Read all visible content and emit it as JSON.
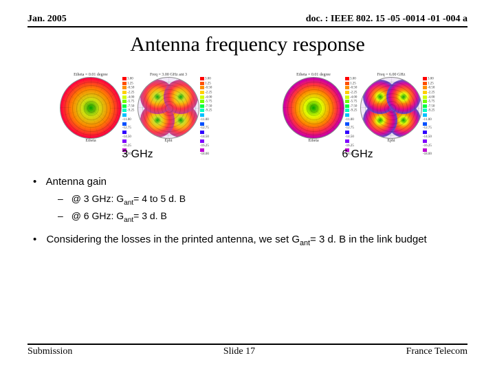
{
  "header": {
    "left": "Jan. 2005",
    "right": "doc. : IEEE 802. 15 -05 -0014 -01 -004 a"
  },
  "title": "Antenna frequency response",
  "polar_plots": {
    "groups": [
      {
        "label": "3 GHz",
        "plots": [
          {
            "pattern": "concentric",
            "gradient": "radial-gradient(circle, #00a000 0%, #d0e010 20%, #ff8000 45%, #ff0040 70%, #c00090 86%, #e8d0f0 95%)",
            "tiny_top": "Etheta = 0.01 degree",
            "tiny_bottom": "Etheta"
          },
          {
            "pattern": "lobes4",
            "gradient": "radial-gradient(circle, #00a000 0%, #c8e020 15%, #ffb000 30%, #ff3040 50%, #c04090 70%, #b060c0 78%, #f0e0f8 92%)",
            "tiny_top": "Freq = 3.00 GHz ant 3",
            "tiny_bottom": "Ephi"
          }
        ]
      },
      {
        "label": "6 GHz",
        "plots": [
          {
            "pattern": "concentric",
            "gradient": "radial-gradient(circle, #00a000 0%, #e0ff00 20%, #ff8000 42%, #ff3040 55%, #d000a0 68%, #6040c0 80%, #d0c0f0 93%)",
            "tiny_top": "Etheta = 0.01 degree",
            "tiny_bottom": "Etheta"
          },
          {
            "pattern": "lobes4",
            "gradient": "radial-gradient(circle, #00a000 0%, #e0ff00 15%, #ff8000 28%, #ff3040 42%, #d000a0 56%, #6040c0 68%, #d0c0f0 82%, #ffffff 95%)",
            "tiny_top": "Freq = 6.00 GHz",
            "tiny_bottom": "Ephi"
          }
        ]
      }
    ],
    "legend_colors": [
      "#ff0000",
      "#ff5000",
      "#ff9000",
      "#ffd000",
      "#d0ff00",
      "#70ff00",
      "#00ff40",
      "#00ffc0",
      "#00c0ff",
      "#0050ff",
      "#3000ff",
      "#8000ff",
      "#c000d0"
    ],
    "legend_values": [
      "3.00",
      "1.25",
      "-0.50",
      "-2.25",
      "-4.00",
      "-5.75",
      "-7.50",
      "-9.25",
      "-11.00",
      "-12.75",
      "-14.50",
      "-16.25",
      "-18.00"
    ],
    "ring_fractions": [
      0.125,
      0.25,
      0.375,
      0.5,
      0.625,
      0.75,
      0.875
    ]
  },
  "bullets": {
    "item1": "Antenna gain",
    "sub1_prefix": "@ 3 GHz: G",
    "sub1_sub": "ant",
    "sub1_suffix": "= 4 to 5 d. B",
    "sub2_prefix": "@ 6 GHz: G",
    "sub2_sub": "ant",
    "sub2_suffix": "= 3 d. B",
    "item2_prefix": "Considering the losses in the printed antenna, we set G",
    "item2_sub": "ant",
    "item2_suffix": "= 3 d. B in the link budget"
  },
  "footer": {
    "left": "Submission",
    "center": "Slide 17",
    "right": "France Telecom"
  },
  "colors": {
    "text": "#000000",
    "background": "#ffffff",
    "rule": "#000000"
  }
}
